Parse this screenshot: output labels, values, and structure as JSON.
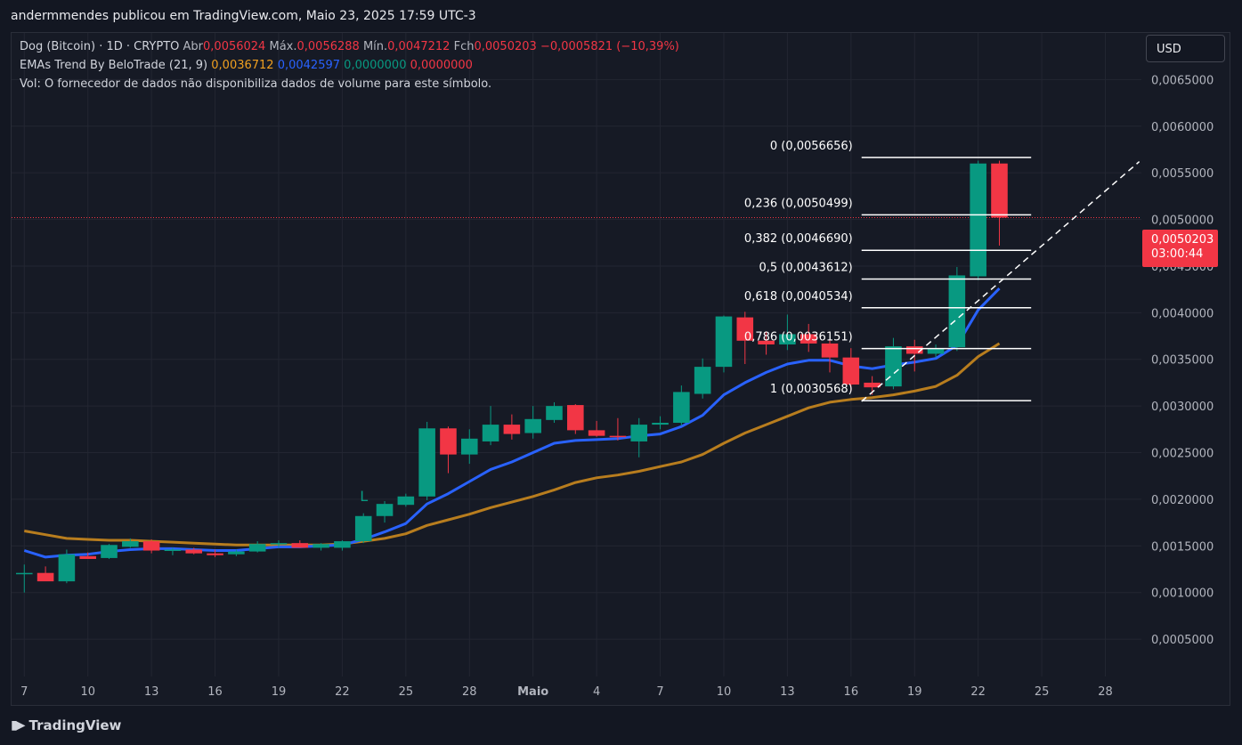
{
  "header": {
    "published": "andermmendes publicou em TradingView.com, Maio 23, 2025 17:59 UTC-3"
  },
  "legend": {
    "symbol": "Dog (Bitcoin) · 1D · CRYPTO",
    "open_label": "Abr",
    "open": "0,0056024",
    "high_label": "Máx.",
    "high": "0,0056288",
    "low_label": "Mín.",
    "low": "0,0047212",
    "close_label": "Fch",
    "close": "0,0050203",
    "change": "−0,0005821 (−10,39%)",
    "ema_title": "EMAs Trend By BeloTrade (21, 9)",
    "ema_v1": "0,0036712",
    "ema_v2": "0,0042597",
    "ema_v3": "0,0000000",
    "ema_v4": "0,0000000",
    "vol_note": "Vol: O fornecedor de dados não disponibiliza dados de volume para este símbolo."
  },
  "currency": "USD",
  "price_tag": {
    "price": "0,0050203",
    "countdown": "03:00:44"
  },
  "brand": "TradingView",
  "colors": {
    "up": "#089981",
    "down": "#f23645",
    "ema_fast": "#2962ff",
    "ema_slow": "#b87d1e",
    "bg": "#161a25"
  },
  "chart_data": {
    "type": "candlestick",
    "y_ticks": [
      "0,0005000",
      "0,0010000",
      "0,0015000",
      "0,0020000",
      "0,0025000",
      "0,0030000",
      "0,0035000",
      "0,0040000",
      "0,0045000",
      "0,0050000",
      "0,0055000",
      "0,0060000",
      "0,0065000"
    ],
    "y_tick_values": [
      0.0005,
      0.001,
      0.0015,
      0.002,
      0.0025,
      0.003,
      0.0035,
      0.004,
      0.0045,
      0.005,
      0.0055,
      0.006,
      0.0065
    ],
    "ylim": [
      0.0001,
      0.007
    ],
    "x_ticks": [
      {
        "label": "7",
        "i": 0
      },
      {
        "label": "10",
        "i": 3
      },
      {
        "label": "13",
        "i": 6
      },
      {
        "label": "16",
        "i": 9
      },
      {
        "label": "19",
        "i": 12
      },
      {
        "label": "22",
        "i": 15
      },
      {
        "label": "25",
        "i": 18
      },
      {
        "label": "28",
        "i": 21
      },
      {
        "label": "Maio",
        "i": 24,
        "bold": true
      },
      {
        "label": "4",
        "i": 27
      },
      {
        "label": "7",
        "i": 30
      },
      {
        "label": "10",
        "i": 33
      },
      {
        "label": "13",
        "i": 36
      },
      {
        "label": "16",
        "i": 39
      },
      {
        "label": "19",
        "i": 42
      },
      {
        "label": "22",
        "i": 45
      },
      {
        "label": "25",
        "i": 48
      },
      {
        "label": "28",
        "i": 51
      }
    ],
    "x_range": [
      -0.6,
      52.7
    ],
    "ohlc": [
      [
        0.0012,
        0.0013,
        0.001,
        0.00121
      ],
      [
        0.00121,
        0.00128,
        0.00114,
        0.00112
      ],
      [
        0.00112,
        0.00146,
        0.0011,
        0.00141
      ],
      [
        0.00139,
        0.00143,
        0.00136,
        0.00136
      ],
      [
        0.00137,
        0.00152,
        0.00136,
        0.00151
      ],
      [
        0.00149,
        0.00158,
        0.00148,
        0.00155
      ],
      [
        0.00155,
        0.00157,
        0.00142,
        0.00145
      ],
      [
        0.00145,
        0.00148,
        0.0014,
        0.00146
      ],
      [
        0.00146,
        0.00148,
        0.00141,
        0.00142
      ],
      [
        0.00142,
        0.00146,
        0.00138,
        0.0014
      ],
      [
        0.00141,
        0.00146,
        0.00139,
        0.00144
      ],
      [
        0.00144,
        0.00155,
        0.00143,
        0.00152
      ],
      [
        0.00152,
        0.00156,
        0.00148,
        0.00153
      ],
      [
        0.00153,
        0.00156,
        0.00148,
        0.00148
      ],
      [
        0.00148,
        0.00153,
        0.00145,
        0.00152
      ],
      [
        0.00148,
        0.00156,
        0.00145,
        0.00155
      ],
      [
        0.00155,
        0.00185,
        0.00153,
        0.00182
      ],
      [
        0.00182,
        0.00198,
        0.00175,
        0.00195
      ],
      [
        0.00194,
        0.00206,
        0.00192,
        0.00203
      ],
      [
        0.00203,
        0.00283,
        0.00199,
        0.00276
      ],
      [
        0.00276,
        0.00278,
        0.00228,
        0.00248
      ],
      [
        0.00248,
        0.00275,
        0.00238,
        0.00265
      ],
      [
        0.00262,
        0.003,
        0.00258,
        0.0028
      ],
      [
        0.0028,
        0.00291,
        0.00264,
        0.0027
      ],
      [
        0.00271,
        0.003,
        0.00265,
        0.00286
      ],
      [
        0.00285,
        0.00304,
        0.00282,
        0.003
      ],
      [
        0.00301,
        0.00302,
        0.0027,
        0.00274
      ],
      [
        0.00274,
        0.00284,
        0.00267,
        0.00268
      ],
      [
        0.00268,
        0.00287,
        0.00263,
        0.00267
      ],
      [
        0.00262,
        0.00287,
        0.00245,
        0.0028
      ],
      [
        0.0028,
        0.00289,
        0.00275,
        0.00282
      ],
      [
        0.00282,
        0.00322,
        0.00279,
        0.00315
      ],
      [
        0.00313,
        0.00351,
        0.00308,
        0.00342
      ],
      [
        0.00342,
        0.00397,
        0.00336,
        0.00396
      ],
      [
        0.00395,
        0.00401,
        0.00345,
        0.0037
      ],
      [
        0.0037,
        0.0038,
        0.00355,
        0.00366
      ],
      [
        0.00366,
        0.00398,
        0.0036,
        0.00377
      ],
      [
        0.00377,
        0.00388,
        0.00358,
        0.00367
      ],
      [
        0.00367,
        0.00372,
        0.00336,
        0.00352
      ],
      [
        0.00352,
        0.00362,
        0.00316,
        0.00323
      ],
      [
        0.00325,
        0.00332,
        0.00312,
        0.0032
      ],
      [
        0.00321,
        0.00373,
        0.00318,
        0.00364
      ],
      [
        0.00364,
        0.00371,
        0.00337,
        0.00356
      ],
      [
        0.00356,
        0.00366,
        0.00352,
        0.00362
      ],
      [
        0.00363,
        0.00449,
        0.00359,
        0.0044
      ],
      [
        0.00439,
        0.00563,
        0.00435,
        0.0056
      ],
      [
        0.0056,
        0.00563,
        0.00472,
        0.00502
      ]
    ],
    "ema_fast": [
      0.00145,
      0.00138,
      0.0014,
      0.00141,
      0.00144,
      0.00146,
      0.00147,
      0.00147,
      0.00146,
      0.00145,
      0.00145,
      0.00147,
      0.00149,
      0.00149,
      0.0015,
      0.00151,
      0.00157,
      0.00165,
      0.00174,
      0.00195,
      0.00206,
      0.00219,
      0.00232,
      0.0024,
      0.0025,
      0.0026,
      0.00263,
      0.00264,
      0.00265,
      0.00268,
      0.0027,
      0.00278,
      0.0029,
      0.00312,
      0.00325,
      0.00336,
      0.00345,
      0.00349,
      0.00349,
      0.00343,
      0.0034,
      0.00344,
      0.00347,
      0.00351,
      0.00365,
      0.00403,
      0.00426
    ],
    "ema_slow": [
      0.00166,
      0.00162,
      0.00158,
      0.00157,
      0.00156,
      0.00156,
      0.00155,
      0.00154,
      0.00153,
      0.00152,
      0.00151,
      0.00151,
      0.00151,
      0.00151,
      0.00151,
      0.00152,
      0.00155,
      0.00158,
      0.00163,
      0.00172,
      0.00178,
      0.00184,
      0.00191,
      0.00197,
      0.00203,
      0.0021,
      0.00218,
      0.00223,
      0.00226,
      0.0023,
      0.00235,
      0.0024,
      0.00248,
      0.0026,
      0.00271,
      0.0028,
      0.00289,
      0.00298,
      0.00304,
      0.00307,
      0.00309,
      0.00312,
      0.00316,
      0.00321,
      0.00333,
      0.00353,
      0.00367
    ],
    "fib_levels": [
      {
        "ratio": "0",
        "value": "0,0056656",
        "price": 0.0056656
      },
      {
        "ratio": "0,236",
        "value": "0,0050499",
        "price": 0.0050499
      },
      {
        "ratio": "0,382",
        "value": "0,0046690",
        "price": 0.004669
      },
      {
        "ratio": "0,5",
        "value": "0,0043612",
        "price": 0.0043612
      },
      {
        "ratio": "0,618",
        "value": "0,0040534",
        "price": 0.0040534
      },
      {
        "ratio": "0,786",
        "value": "0,0036151",
        "price": 0.0036151
      },
      {
        "ratio": "1",
        "value": "0,0030568",
        "price": 0.0030568
      }
    ],
    "fib_x_range": [
      39.5,
      47.5
    ],
    "trend_line": {
      "i1": 39.5,
      "p1": 0.00305,
      "i2": 52.6,
      "p2": 0.00562
    },
    "current_price": 0.0050203,
    "marker": {
      "label": "L",
      "i": 16,
      "price": 0.00198
    }
  }
}
